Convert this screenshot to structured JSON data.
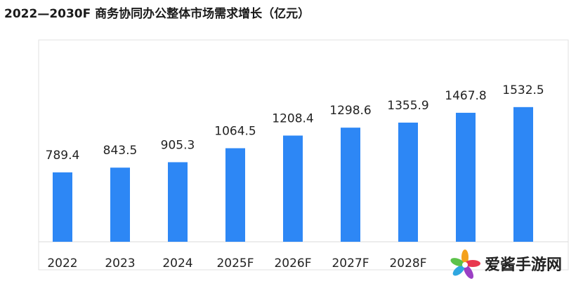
{
  "chart_data": {
    "type": "bar",
    "title": "2022—2030F 商务协同办公整体市场需求增长（亿元）",
    "categories": [
      "2022",
      "2023",
      "2024",
      "2025F",
      "2026F",
      "2027F",
      "2028F",
      null,
      null
    ],
    "values": [
      789.4,
      843.5,
      905.3,
      1064.5,
      1208.4,
      1298.6,
      1355.9,
      1467.8,
      1532.5
    ],
    "color": "#2d87f5",
    "watermark": "爱酱手游网"
  }
}
